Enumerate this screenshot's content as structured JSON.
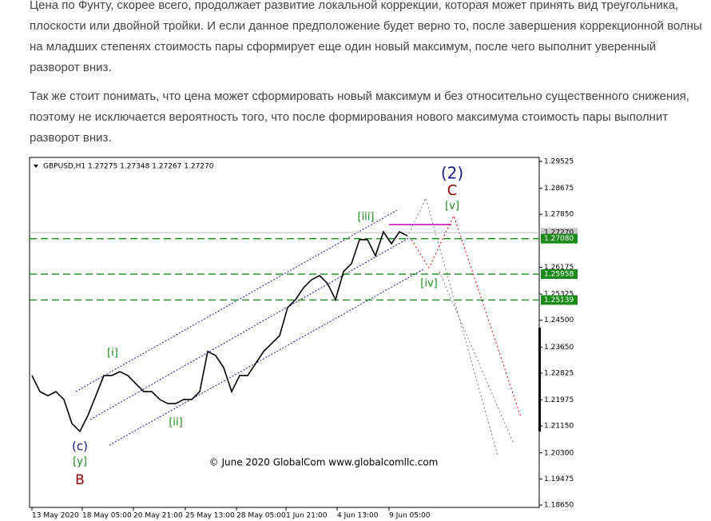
{
  "paragraphs": [
    "Цена по Фунту, скорее всего, продолжает развитие локальной коррекции, которая может принять вид треугольника, плоскости или двойной тройки. И если данное предположение будет верно то, после завершения коррекционной волны на младших степенях стоимость пары сформирует еще один новый максимум, после чего выполнит уверенный разворот вниз.",
    "Так же стоит понимать, что цена может сформировать новый максимум и без относительно существенного снижения, поэтому не исключается вероятность того, что после формирования нового максимума стоимость пары выполнит разворот вниз."
  ],
  "chart": {
    "type": "line",
    "header": "GBPUSD,H1  1.27275 1.27348 1.27267 1.27270",
    "copyright": "© June 2020 GlobalCom www.globalcomllc.com",
    "ylim": [
      1.1865,
      1.29525
    ],
    "yticks": [
      1.29525,
      1.28675,
      {
        "value": 1.2785,
        "label": "1.27850"
      },
      1.26175,
      1.25325,
      {
        "value": 1.245,
        "label": "1.24500"
      },
      {
        "value": 1.2365,
        "label": "1.23650"
      },
      1.22825,
      1.21975,
      {
        "value": 1.2115,
        "label": "1.21150"
      },
      {
        "value": 1.203,
        "label": "1.20300"
      },
      1.19475,
      {
        "value": 1.1865,
        "label": "1.18650"
      }
    ],
    "current": {
      "value": 1.2727,
      "label": "1.27270"
    },
    "levels": [
      {
        "value": 1.2708,
        "label": "1.27080"
      },
      {
        "value": 1.25958,
        "label": "1.25958"
      },
      {
        "value": 1.25139,
        "label": "1.25139"
      }
    ],
    "level_color": "#1a8a1a",
    "x_labels": [
      "13 May 2020",
      "18 May 05:00",
      "20 May 21:00",
      "25 May 13:00",
      "28 May 05:00",
      "1 Jun 21:00",
      "4 Jun 13:00",
      "9 Jun 05:00"
    ],
    "prices": [
      1.2275,
      1.2224,
      1.2211,
      1.2224,
      1.2199,
      1.2123,
      1.2098,
      1.2148,
      1.2211,
      1.2275,
      1.2275,
      1.2287,
      1.2275,
      1.2249,
      1.2224,
      1.2224,
      1.2199,
      1.2186,
      1.2186,
      1.2199,
      1.2199,
      1.2224,
      1.2351,
      1.2338,
      1.23,
      1.2224,
      1.2275,
      1.2275,
      1.2313,
      1.2351,
      1.2376,
      1.2401,
      1.249,
      1.2515,
      1.2553,
      1.2578,
      1.2591,
      1.2566,
      1.2515,
      1.2604,
      1.2629,
      1.2705,
      1.2705,
      1.2654,
      1.273,
      1.2692,
      1.273,
      1.2717
    ],
    "waves": [
      {
        "label": "(2)",
        "color": "#1a1a8c"
      },
      {
        "label": "C",
        "color": "#8b0000"
      },
      {
        "label": "[v]",
        "color": "#1a8a1a"
      },
      {
        "label": "[iii]",
        "color": "#1a8a1a"
      },
      {
        "label": "[iv]",
        "color": "#1a8a1a"
      },
      {
        "label": "[i]",
        "color": "#1a8a1a"
      },
      {
        "label": "[ii]",
        "color": "#1a8a1a"
      },
      {
        "label": "(c)",
        "color": "#1a1a8c"
      },
      {
        "label": "[y]",
        "color": "#1a8a1a"
      },
      {
        "label": "B",
        "color": "#8b0000"
      }
    ]
  }
}
